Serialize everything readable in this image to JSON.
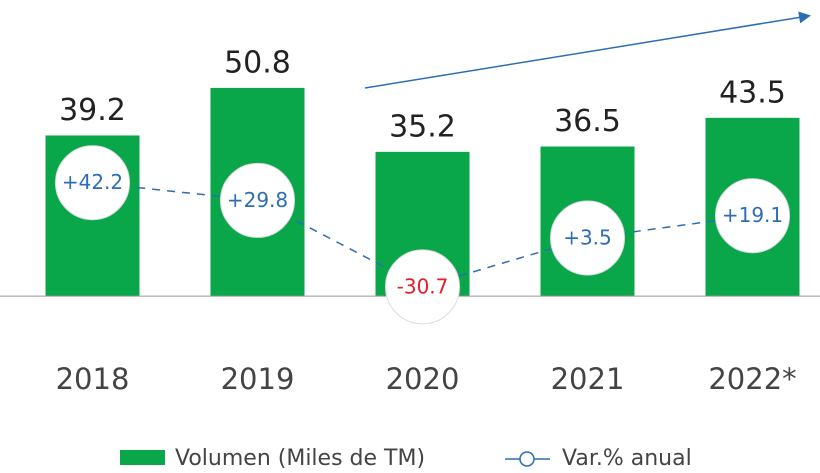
{
  "chart_data": {
    "type": "bar_line",
    "categories": [
      "2018",
      "2019",
      "2020",
      "2021",
      "2022*"
    ],
    "series": [
      {
        "name": "Volumen (Miles de TM)",
        "type": "bar",
        "color": "#0aa64a",
        "values": [
          39.2,
          50.8,
          35.2,
          36.5,
          43.5
        ]
      },
      {
        "name": "Var.% anual",
        "type": "line",
        "axis": "y2",
        "color": "#2d6db5",
        "negative_color": "#e0202a",
        "values": [
          42.2,
          29.8,
          -30.7,
          3.5,
          19.1
        ],
        "value_labels": [
          "+42.2",
          "+29.8",
          "-30.7",
          "+3.5",
          "+19.1"
        ]
      }
    ],
    "ylim": [
      -9,
      52
    ],
    "y2lim": [
      -63,
      112
    ],
    "legend": "bottom"
  }
}
